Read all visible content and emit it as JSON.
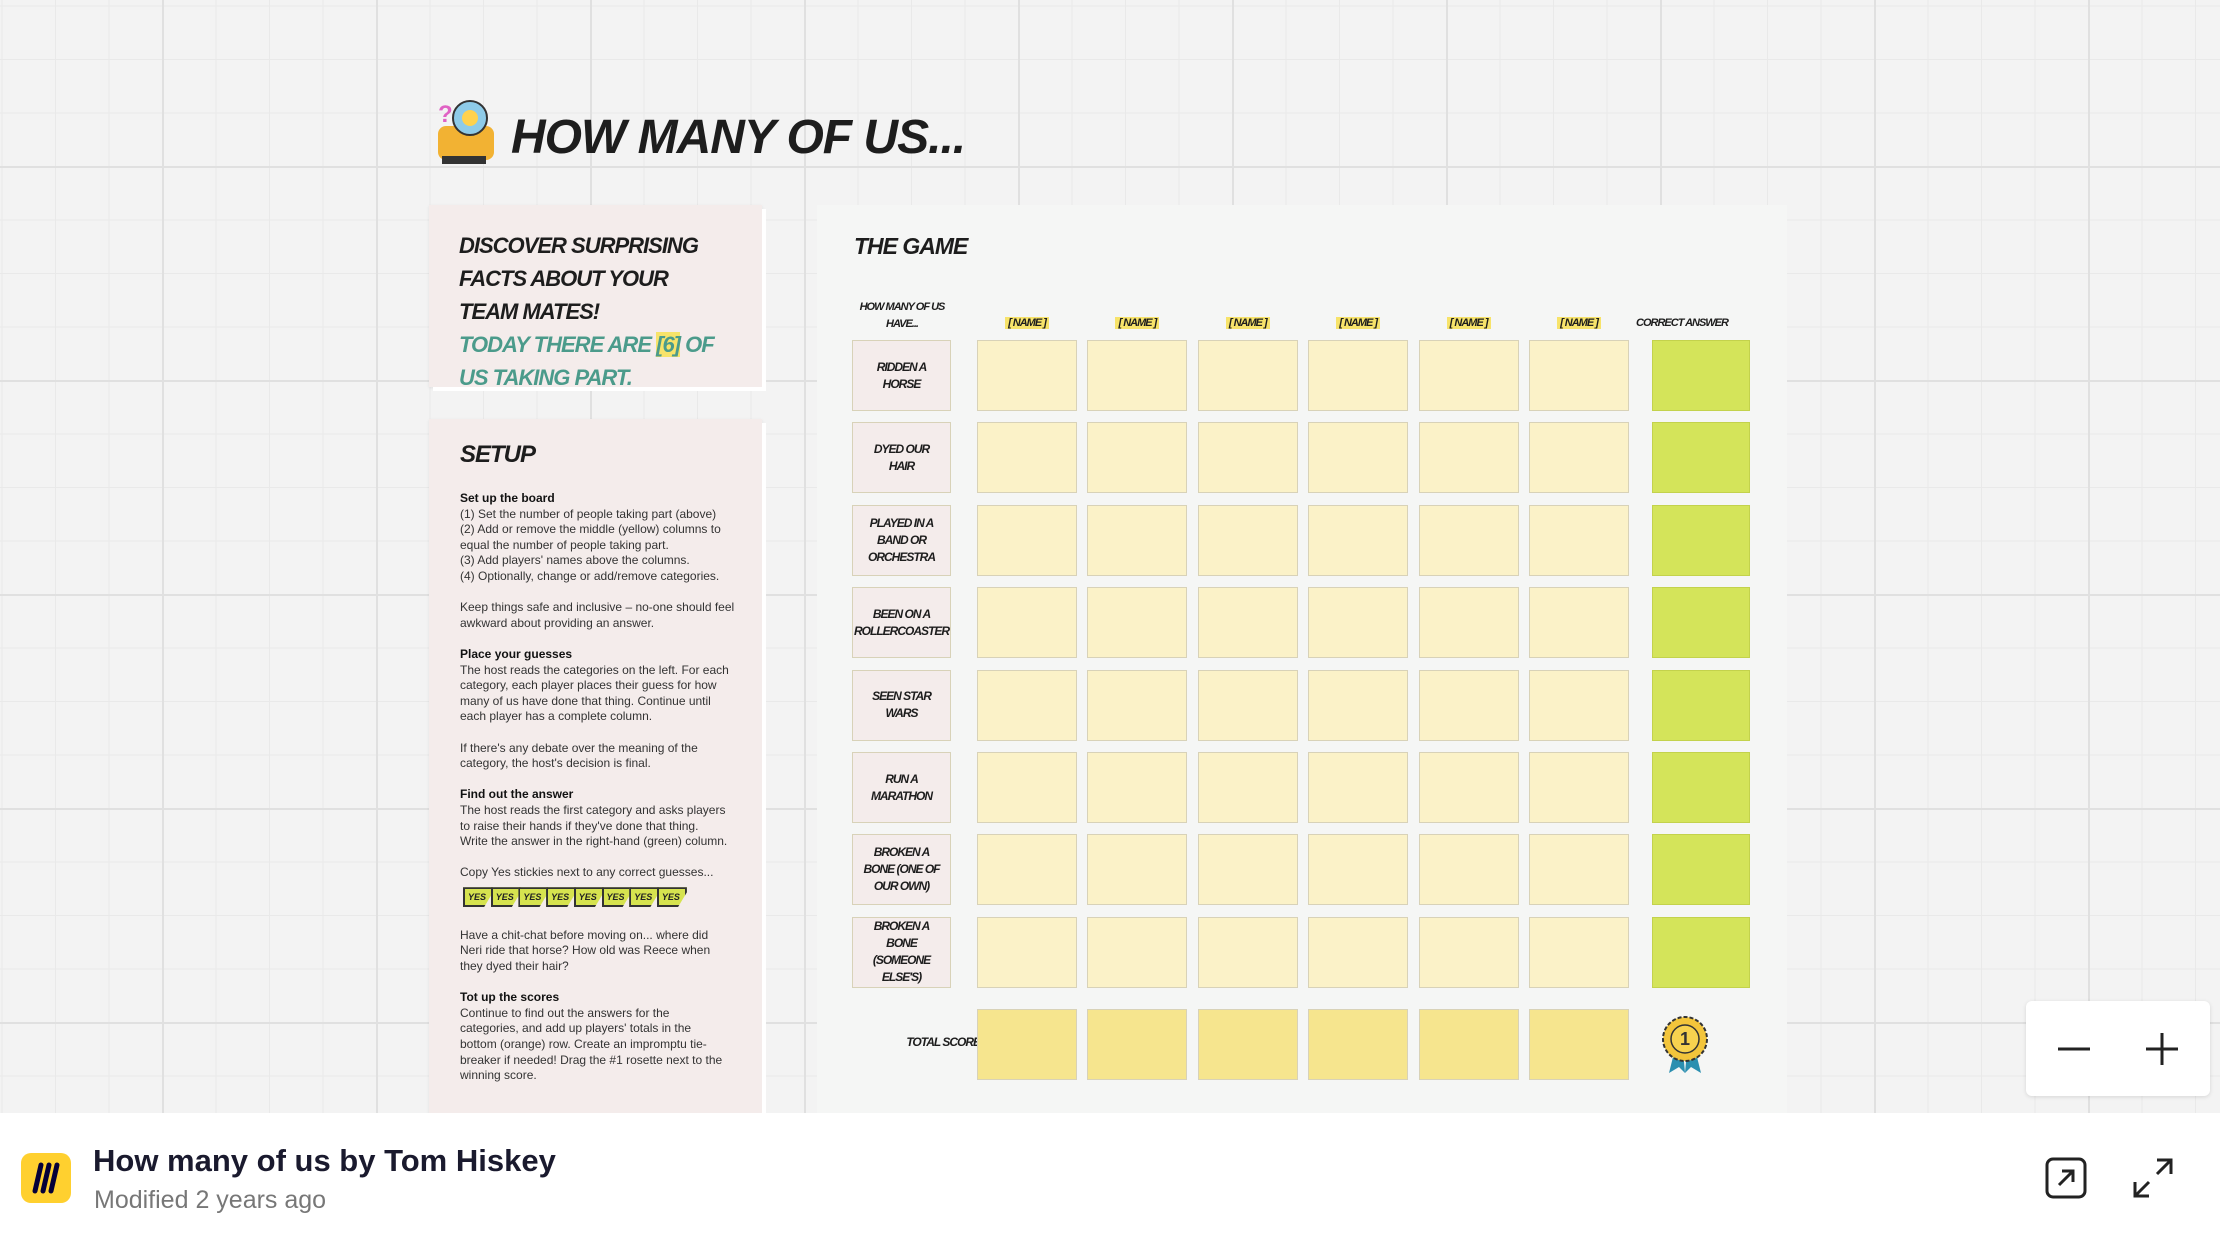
{
  "title": "HOW MANY OF US...",
  "intro": {
    "line1": "DISCOVER SURPRISING FACTS ABOUT YOUR TEAM MATES!",
    "before": "TODAY THERE ARE",
    "count": "[6]",
    "after": "OF US TAKING PART."
  },
  "setup": {
    "title": "SETUP",
    "items": [
      {
        "heading": "Set up the board"
      },
      {
        "lines": [
          "(1) Set the number of people taking part (above)",
          "(2) Add or remove the middle (yellow) columns to",
          "equal the number of people taking part.",
          "(3) Add players' names above the columns.",
          "(4) Optionally, change or add/remove categories."
        ]
      },
      {
        "lines": [
          "Keep things safe and inclusive – no-one should feel",
          "awkward about providing an answer."
        ]
      },
      {
        "heading": "Place your guesses"
      },
      {
        "lines": [
          "The host reads the categories on the left. For each",
          "category, each player places their guess for how",
          "many of us have done that thing. Continue until",
          "each player has a complete column."
        ]
      },
      {
        "lines": [
          "If there's any debate over the meaning of the",
          "category, the host's decision is final."
        ]
      },
      {
        "heading": "Find out the answer"
      },
      {
        "lines": [
          "The host reads the first category and asks players",
          "to raise their hands if they've done that thing.",
          "Write the answer in the right-hand (green) column."
        ]
      },
      {
        "lines": [
          "Copy Yes stickies next to any correct guesses..."
        ]
      },
      {
        "stickies": [
          "YES",
          "YES",
          "YES",
          "YES",
          "YES",
          "YES",
          "YES",
          "YES"
        ]
      },
      {
        "lines": [
          "Have a chit-chat before moving on... where did",
          "Neri ride that horse? How old was Reece when",
          "they dyed their hair?"
        ]
      },
      {
        "heading": "Tot up the scores"
      },
      {
        "lines": [
          "Continue to find out the answers for the",
          "categories, and add up players' totals in the",
          "bottom (orange) row. Create an impromptu tie-",
          "breaker if needed! Drag the #1 rosette next to the",
          "winning score."
        ]
      }
    ]
  },
  "game": {
    "title": "THE GAME",
    "corner": "HOW MANY OF US HAVE...",
    "names": [
      "[ NAME ]",
      "[ NAME ]",
      "[ NAME ]",
      "[ NAME ]",
      "[ NAME ]",
      "[ NAME ]"
    ],
    "answer_header": "CORRECT ANSWER",
    "categories": [
      "RIDDEN A HORSE",
      "DYED OUR HAIR",
      "PLAYED IN A BAND OR ORCHESTRA",
      "BEEN ON A ROLLERCOASTER",
      "SEEN STAR WARS",
      "RUN A MARATHON",
      "BROKEN A BONE (ONE OF OUR OWN)",
      "BROKEN A BONE (SOMEONE ELSE'S)"
    ],
    "total_label": "TOTAL SCORE...",
    "rosette": "1"
  },
  "footer": {
    "title": "How many of us by Tom Hiskey",
    "modified": "Modified 2 years ago"
  }
}
